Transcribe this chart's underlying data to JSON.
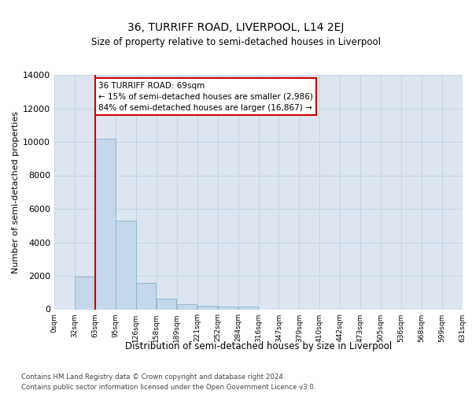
{
  "title": "36, TURRIFF ROAD, LIVERPOOL, L14 2EJ",
  "subtitle": "Size of property relative to semi-detached houses in Liverpool",
  "xlabel": "Distribution of semi-detached houses by size in Liverpool",
  "ylabel": "Number of semi-detached properties",
  "bin_labels": [
    "0sqm",
    "32sqm",
    "63sqm",
    "95sqm",
    "126sqm",
    "158sqm",
    "189sqm",
    "221sqm",
    "252sqm",
    "284sqm",
    "316sqm",
    "347sqm",
    "379sqm",
    "410sqm",
    "442sqm",
    "473sqm",
    "505sqm",
    "536sqm",
    "568sqm",
    "599sqm",
    "631sqm"
  ],
  "bar_values": [
    0,
    1950,
    10200,
    5300,
    1600,
    650,
    300,
    200,
    150,
    150,
    0,
    0,
    0,
    0,
    0,
    0,
    0,
    0,
    0,
    0
  ],
  "bar_color": "#c5d8ea",
  "bar_edge_color": "#8ab4cc",
  "grid_color": "#c8d4e4",
  "background_color": "#dde6f0",
  "red_line_bin": 2,
  "bin_width": 1,
  "annotation_text": "36 TURRIFF ROAD: 69sqm\n← 15% of semi-detached houses are smaller (2,986)\n84% of semi-detached houses are larger (16,867) →",
  "annotation_box_color": "#ffffff",
  "annotation_box_edge": "#cc0000",
  "red_line_color": "#cc0000",
  "ylim": [
    0,
    14000
  ],
  "yticks": [
    0,
    2000,
    4000,
    6000,
    8000,
    10000,
    12000,
    14000
  ],
  "footer_line1": "Contains HM Land Registry data © Crown copyright and database right 2024.",
  "footer_line2": "Contains public sector information licensed under the Open Government Licence v3.0.",
  "title_fontsize": 10,
  "subtitle_fontsize": 8.5,
  "ylabel_fontsize": 8,
  "xlabel_fontsize": 8.5,
  "ytick_fontsize": 8,
  "xtick_fontsize": 6.5,
  "footer_fontsize": 6.2,
  "annot_fontsize": 7.5
}
